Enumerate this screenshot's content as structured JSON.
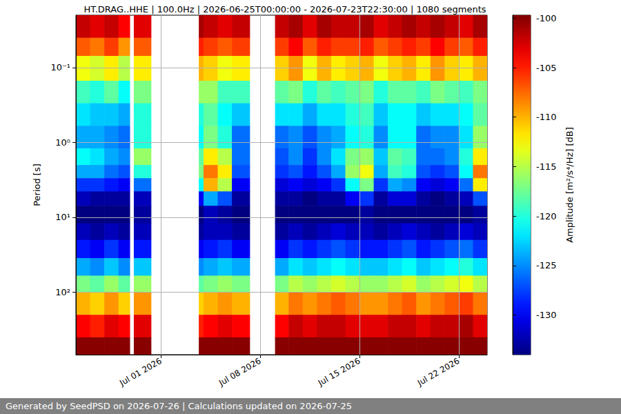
{
  "chart_data": {
    "type": "heatmap",
    "title": "HT.DRAG..HHE | 100.0Hz | 2026-06-25T00:00:00 - 2026-07-23T22:30:00 | 1080 segments",
    "footer": "Generated by SeedPSD on 2026-07-26 | Calculations updated on 2026-07-25",
    "y_label": "Period [s]",
    "log": "y",
    "grid": true,
    "x": [
      "2026-06-25T00:00:00",
      "2026-06-26T00:00:00",
      "2026-06-27T00:00:00",
      "2026-06-28T00:00:00",
      "2026-06-28T19:00:00",
      "2026-06-29T02:00:00",
      "2026-06-30T07:00:00",
      "2026-07-03T16:00:00",
      "2026-07-04T00:00:00",
      "2026-07-05T00:00:00",
      "2026-07-06T00:00:00",
      "2026-07-07T06:00:00",
      "2026-07-09T01:00:00",
      "2026-07-10T00:00:00",
      "2026-07-11T00:00:00",
      "2026-07-12T00:00:00",
      "2026-07-13T00:00:00",
      "2026-07-14T00:00:00",
      "2026-07-15T00:00:00",
      "2026-07-16T00:00:00",
      "2026-07-17T00:00:00",
      "2026-07-18T00:00:00",
      "2026-07-19T00:00:00",
      "2026-07-20T00:00:00",
      "2026-07-21T00:00:00",
      "2026-07-22T00:00:00",
      "2026-07-23T00:00:00",
      "2026-07-24T00:00:00"
    ],
    "y": [
      0.02,
      0.04,
      0.07,
      0.15,
      0.3,
      0.6,
      1.2,
      2,
      3,
      4.5,
      7,
      12,
      20,
      35,
      60,
      100,
      200,
      400,
      681
    ],
    "cells": [
      [
        -102,
        -103,
        -102,
        -104,
        null,
        -103,
        null,
        -101,
        -102,
        -103,
        -102,
        null,
        -102,
        -101,
        -103,
        -101,
        -102,
        -102,
        -101,
        -103,
        -102,
        -101,
        -102,
        -101,
        -102,
        -103,
        -101
      ],
      [
        -107,
        -108,
        -106,
        -109,
        null,
        -107,
        null,
        -105,
        -106,
        -107,
        -106,
        null,
        -106,
        -104,
        -107,
        -105,
        -106,
        -106,
        -105,
        -107,
        -106,
        -105,
        -106,
        -104,
        -106,
        -107,
        -105
      ],
      [
        -113,
        -114,
        -112,
        -115,
        null,
        -112,
        null,
        -110,
        -111,
        -113,
        -112,
        null,
        -111,
        -109,
        -113,
        -110,
        -112,
        -111,
        -110,
        -113,
        -111,
        -110,
        -112,
        -109,
        -111,
        -112,
        -110
      ],
      [
        -119,
        -120,
        -118,
        -121,
        null,
        -117,
        null,
        -116,
        -116,
        -119,
        -119,
        null,
        -118,
        -117,
        -120,
        -118,
        -119,
        -118,
        -117,
        -120,
        -118,
        -118,
        -119,
        -117,
        -118,
        -119,
        -117
      ],
      [
        -122,
        -123,
        -123,
        -124,
        null,
        -120,
        null,
        -120,
        -118,
        -121,
        -123,
        null,
        -122,
        -122,
        -124,
        -122,
        -122,
        -120,
        -119,
        -123,
        -121,
        -121,
        -123,
        -122,
        -122,
        -121,
        -118
      ],
      [
        -124,
        -124,
        -125,
        -126,
        null,
        -120,
        null,
        -121,
        -117,
        -120,
        -126,
        null,
        -126,
        -125,
        -127,
        -125,
        -124,
        -121,
        -120,
        -125,
        -121,
        -121,
        -126,
        -125,
        -125,
        -122,
        -116
      ],
      [
        -121,
        -122,
        -124,
        -125,
        null,
        -116,
        null,
        -118,
        -112,
        -115,
        -126,
        null,
        -127,
        -125,
        -128,
        -125,
        -122,
        -117,
        -116,
        -123,
        -118,
        -119,
        -126,
        -126,
        -125,
        -120,
        -112
      ],
      [
        -124,
        -124,
        -126,
        -127,
        null,
        -120,
        null,
        -117,
        -108,
        -112,
        -127,
        null,
        -128,
        -127,
        -129,
        -127,
        -124,
        -116,
        -113,
        -124,
        -119,
        -120,
        -127,
        -128,
        -127,
        -121,
        -108
      ],
      [
        -128,
        -128,
        -129,
        -130,
        null,
        -126,
        null,
        -121,
        -110,
        -115,
        -130,
        null,
        -131,
        -130,
        -131,
        -130,
        -128,
        -121,
        -117,
        -128,
        -124,
        -125,
        -130,
        -131,
        -130,
        -126,
        -112
      ],
      [
        -132,
        -133,
        -133,
        -133,
        null,
        -132,
        null,
        -130,
        -124,
        -127,
        -133,
        null,
        -133,
        -133,
        -134,
        -133,
        -133,
        -130,
        -128,
        -133,
        -131,
        -131,
        -133,
        -134,
        -133,
        -132,
        -127
      ],
      [
        -134,
        -134,
        -134,
        -134,
        null,
        -133,
        null,
        -134,
        -132,
        -133,
        -134,
        null,
        -134,
        -134,
        -134,
        -134,
        -134,
        -134,
        -133,
        -134,
        -134,
        -134,
        -134,
        -134,
        -134,
        -134,
        -133
      ],
      [
        -132,
        -133,
        -132,
        -133,
        null,
        -132,
        null,
        -133,
        -132,
        -132,
        -133,
        null,
        -133,
        -132,
        -133,
        -132,
        -131,
        -132,
        -132,
        -133,
        -132,
        -131,
        -132,
        -133,
        -132,
        -131,
        -132
      ],
      [
        -129,
        -130,
        -128,
        -130,
        null,
        -129,
        null,
        -130,
        -129,
        -128,
        -130,
        null,
        -130,
        -128,
        -129,
        -128,
        -127,
        -128,
        -129,
        -129,
        -128,
        -127,
        -129,
        -128,
        -127,
        -126,
        -128
      ],
      [
        -124,
        -125,
        -123,
        -125,
        null,
        -123,
        null,
        -125,
        -124,
        -123,
        -124,
        null,
        -124,
        -122,
        -123,
        -122,
        -121,
        -122,
        -123,
        -123,
        -122,
        -121,
        -123,
        -122,
        -121,
        -120,
        -122
      ],
      [
        -117,
        -118,
        -116,
        -118,
        null,
        -116,
        null,
        -118,
        -117,
        -116,
        -117,
        null,
        -117,
        -115,
        -116,
        -115,
        -114,
        -115,
        -116,
        -116,
        -115,
        -114,
        -116,
        -115,
        -114,
        -113,
        -115
      ],
      [
        -110,
        -111,
        -109,
        -111,
        null,
        -109,
        null,
        -111,
        -110,
        -109,
        -110,
        null,
        -110,
        -108,
        -109,
        -108,
        -107,
        -108,
        -109,
        -109,
        -108,
        -107,
        -109,
        -108,
        -107,
        -106,
        -108
      ],
      [
        -104,
        -105,
        -103,
        -104,
        null,
        -103,
        null,
        -105,
        -104,
        -103,
        -104,
        null,
        -104,
        -102,
        -103,
        -102,
        -102,
        -103,
        -103,
        -103,
        -102,
        -102,
        -103,
        -102,
        -102,
        -101,
        -103
      ],
      [
        -100,
        -100,
        -100,
        -100,
        null,
        -100,
        null,
        -100,
        -100,
        -100,
        -100,
        null,
        -100,
        -100,
        -100,
        -100,
        -100,
        -100,
        -100,
        -100,
        -100,
        -100,
        -100,
        -100,
        -100,
        -100,
        -100
      ]
    ],
    "xlim": [
      "2026-06-25T00:00:00",
      "2026-07-24T00:00:00"
    ],
    "xticks": [
      {
        "value": "2026-07-01T00:00:00",
        "label": "Jul 01 2026"
      },
      {
        "value": "2026-07-08T00:00:00",
        "label": "Jul 08 2026"
      },
      {
        "value": "2026-07-15T00:00:00",
        "label": "Jul 15 2026"
      },
      {
        "value": "2026-07-22T00:00:00",
        "label": "Jul 22 2026"
      }
    ],
    "ylim": [
      0.02,
      681
    ],
    "yticks": [
      {
        "value": 0.1,
        "label": "10⁻¹"
      },
      {
        "value": 1,
        "label": "10⁰"
      },
      {
        "value": 10,
        "label": "10¹"
      },
      {
        "value": 100,
        "label": "10²"
      }
    ],
    "colorbar": {
      "label": "Amplitude [m²/s⁴/Hz] [dB]",
      "range": [
        -134,
        -99.7
      ],
      "ticks": [
        -130,
        -125,
        -120,
        -115,
        -110,
        -105,
        -100
      ]
    }
  }
}
